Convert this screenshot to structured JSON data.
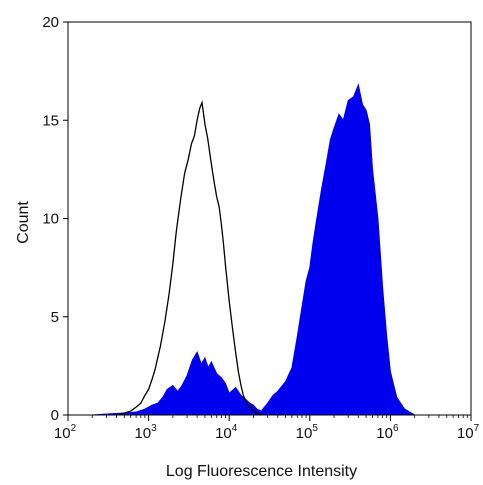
{
  "chart_data": {
    "type": "area",
    "xlabel": "Log Fluorescence Intensity",
    "ylabel": "Count",
    "xscale": "log",
    "xlim": [
      100,
      10000000
    ],
    "ylim": [
      0,
      20
    ],
    "x_ticks": [
      {
        "base": "10",
        "exp": "2",
        "value": 100
      },
      {
        "base": "10",
        "exp": "3",
        "value": 1000
      },
      {
        "base": "10",
        "exp": "4",
        "value": 10000
      },
      {
        "base": "10",
        "exp": "5",
        "value": 100000
      },
      {
        "base": "10",
        "exp": "6",
        "value": 1000000
      },
      {
        "base": "10",
        "exp": "7",
        "value": 10000000
      }
    ],
    "y_ticks": [
      {
        "label": "0",
        "value": 0
      },
      {
        "label": "5",
        "value": 5
      },
      {
        "label": "10",
        "value": 10
      },
      {
        "label": "15",
        "value": 15
      },
      {
        "label": "20",
        "value": 20
      }
    ],
    "grid": false,
    "series": [
      {
        "style": "filled",
        "color": "#0000ee",
        "x": [
          200,
          300,
          500,
          700,
          900,
          1100,
          1300,
          1500,
          1700,
          2000,
          2300,
          2600,
          3000,
          3500,
          4000,
          4500,
          5000,
          5500,
          6000,
          7000,
          8000,
          9000,
          10000,
          12000,
          14000,
          16000,
          18000,
          20000,
          22000,
          25000,
          30000,
          35000,
          40000,
          50000,
          60000,
          70000,
          80000,
          90000,
          100000,
          110000,
          120000,
          140000,
          160000,
          180000,
          200000,
          230000,
          260000,
          300000,
          350000,
          400000,
          450000,
          500000,
          550000,
          600000,
          700000,
          800000,
          900000,
          1000000,
          1200000,
          1500000,
          2000000
        ],
        "y": [
          0,
          0.05,
          0.1,
          0.15,
          0.3,
          0.5,
          0.6,
          0.9,
          1.3,
          1.5,
          1.2,
          1.5,
          2.0,
          2.8,
          3.2,
          2.6,
          2.9,
          2.4,
          2.7,
          2.1,
          1.9,
          1.6,
          1.1,
          1.4,
          1.0,
          0.8,
          0.6,
          0.5,
          0.3,
          0.2,
          0.6,
          1.0,
          1.2,
          1.7,
          2.4,
          4.0,
          5.5,
          6.8,
          7.5,
          8.8,
          9.8,
          11.5,
          12.8,
          14.0,
          14.6,
          15.3,
          15.0,
          16.0,
          16.2,
          16.8,
          15.8,
          15.5,
          14.8,
          12.5,
          10.0,
          6.5,
          4.0,
          2.2,
          0.9,
          0.3,
          0
        ]
      },
      {
        "style": "outline",
        "color": "#000000",
        "x": [
          400,
          500,
          600,
          700,
          800,
          900,
          1000,
          1100,
          1200,
          1400,
          1600,
          1800,
          2000,
          2200,
          2500,
          2800,
          3100,
          3400,
          3700,
          4000,
          4300,
          4600,
          5000,
          5400,
          5800,
          6200,
          6600,
          7000,
          7500,
          8000,
          8500,
          9000,
          10000,
          11000,
          12000,
          13000,
          14000,
          15000,
          16000,
          18000,
          20000,
          22000,
          25000
        ],
        "y": [
          0,
          0.1,
          0.2,
          0.4,
          0.6,
          1.0,
          1.3,
          1.8,
          2.3,
          3.5,
          4.8,
          6.2,
          7.7,
          9.3,
          11.0,
          12.3,
          13.0,
          13.8,
          14.2,
          15.0,
          15.6,
          15.9,
          14.8,
          14.1,
          13.2,
          12.4,
          11.7,
          11.1,
          10.6,
          9.7,
          8.7,
          7.6,
          5.8,
          4.4,
          3.2,
          2.2,
          1.5,
          1.0,
          0.7,
          0.4,
          0.2,
          0.1,
          0
        ]
      }
    ]
  }
}
